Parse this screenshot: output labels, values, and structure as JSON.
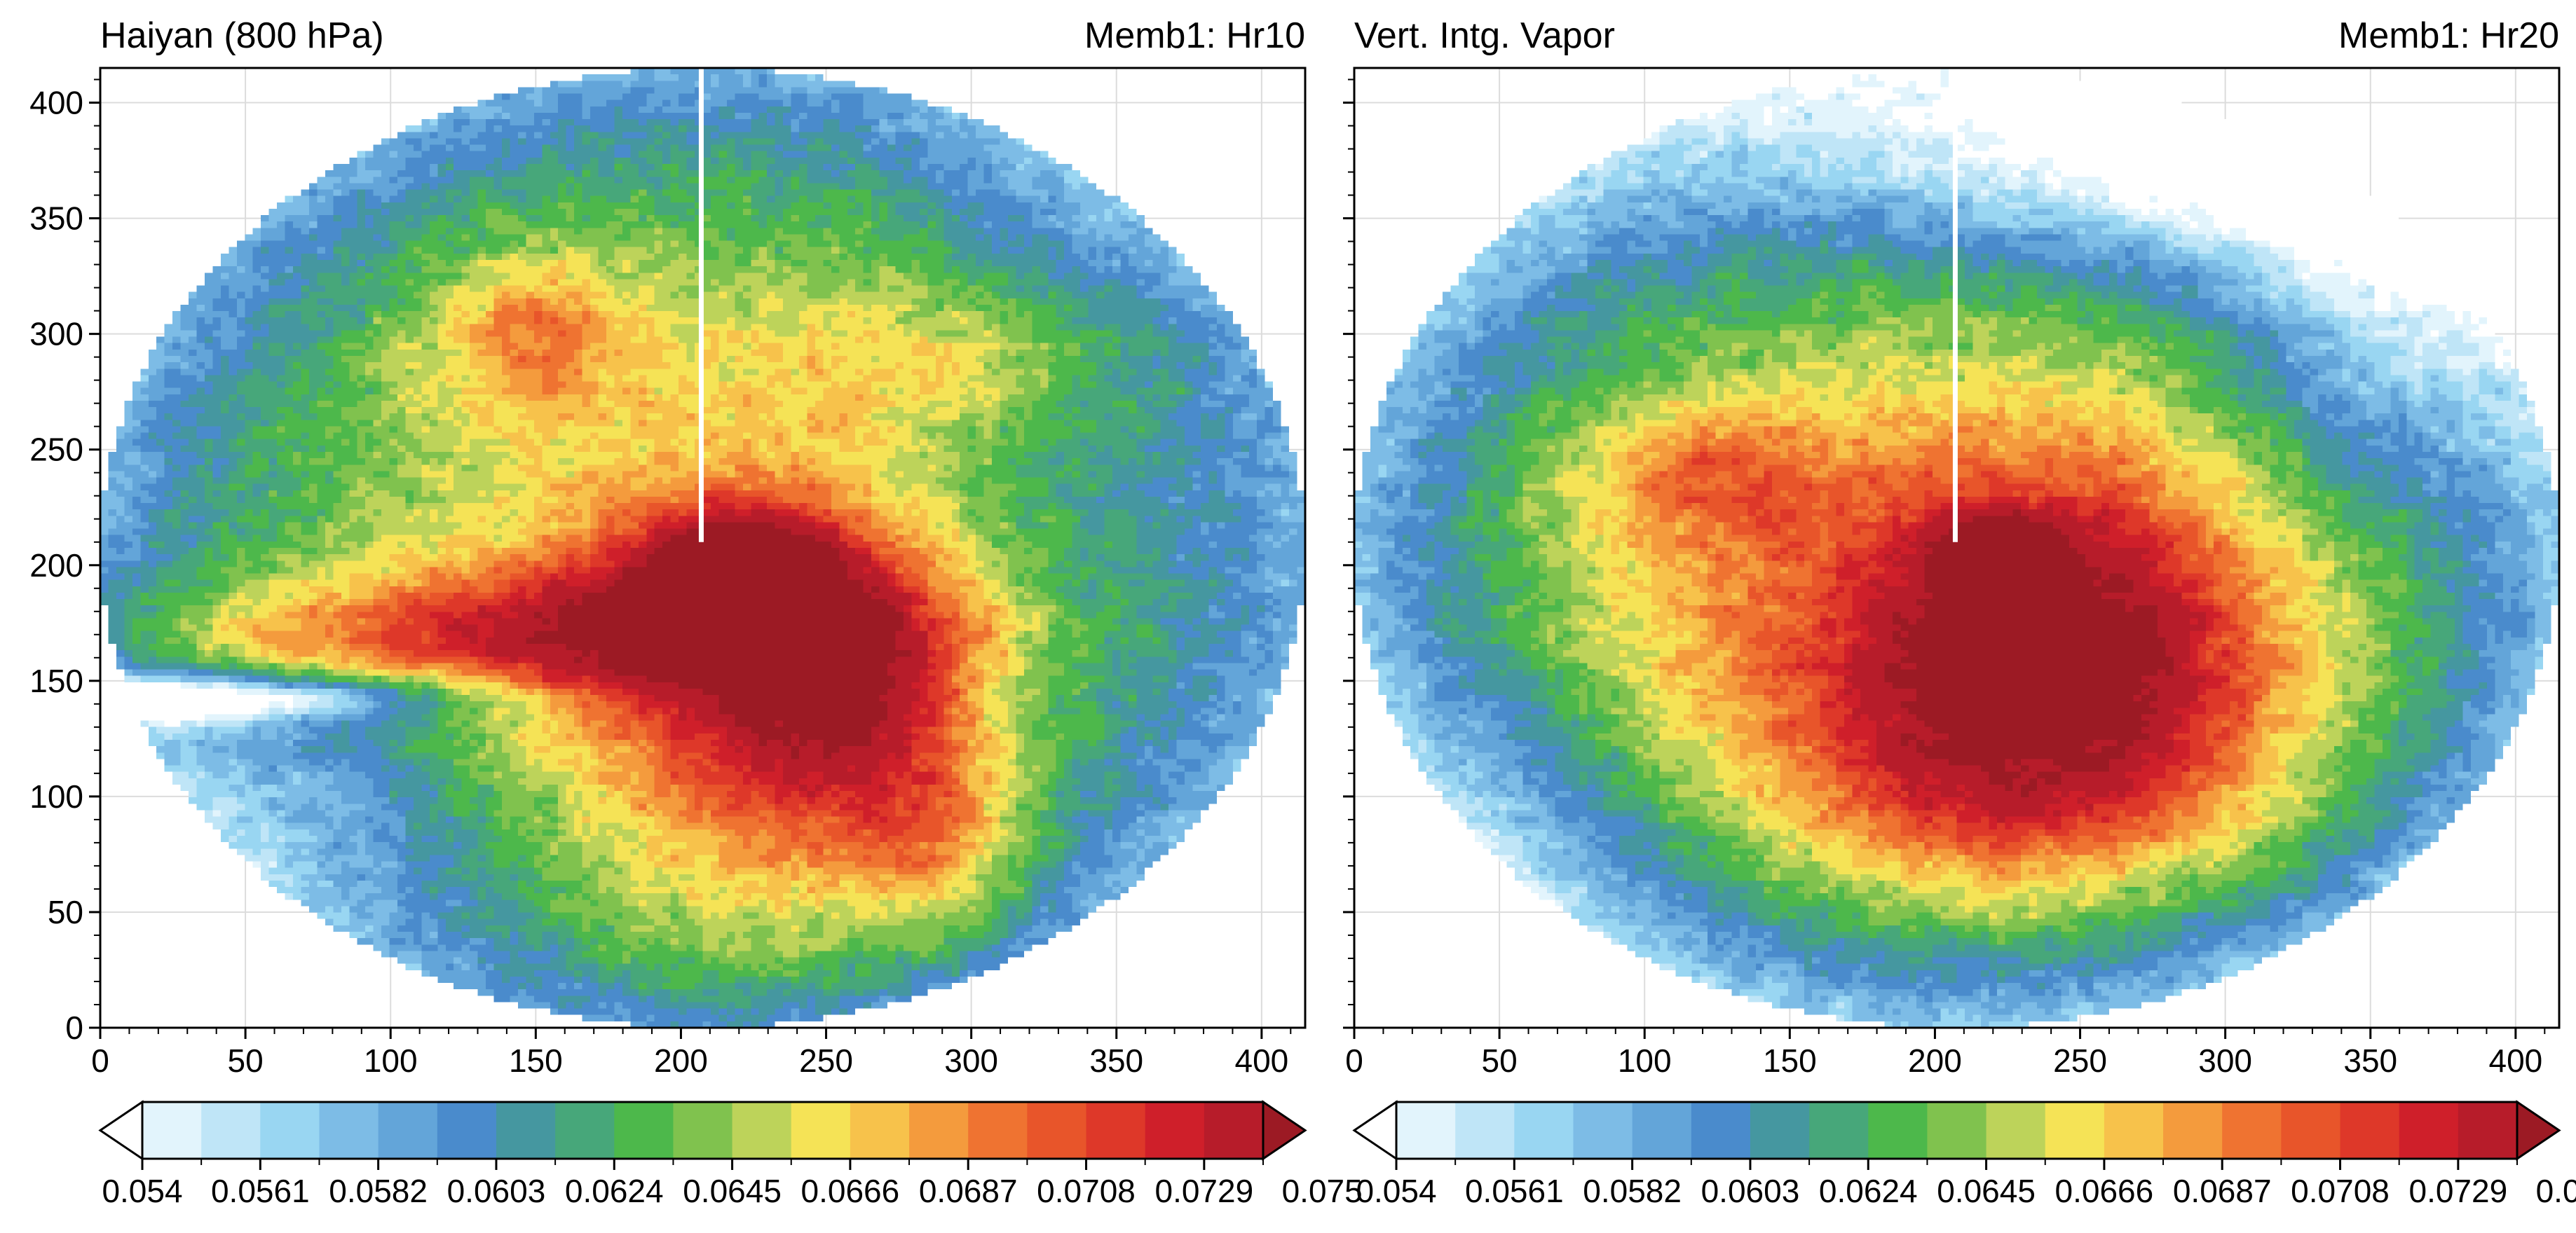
{
  "figure": {
    "panels": [
      {
        "left_title": "Haiyan (800 hPa)",
        "right_title": "Memb1: Hr10",
        "chart_data": {
          "type": "heatmap",
          "title": "Haiyan (800 hPa)",
          "subtitle": "Memb1: Hr10",
          "xlim": [
            0,
            415
          ],
          "ylim": [
            0,
            415
          ],
          "xticks": [
            0,
            50,
            100,
            150,
            200,
            250,
            300,
            350,
            400
          ],
          "yticks": [
            0,
            50,
            100,
            150,
            200,
            250,
            300,
            350,
            400
          ],
          "grid": true,
          "domain_center": [
            207.5,
            207.5
          ],
          "domain_radius": [
            207.5,
            207.5
          ],
          "center_line_x": 207,
          "center_line_y_range": [
            210,
            415
          ],
          "features": [
            {
              "kind": "max",
              "x": 222,
              "y": 195,
              "amp": 0.011,
              "sx": 20,
              "sy": 18
            },
            {
              "kind": "max",
              "x": 215,
              "y": 180,
              "amp": 0.007,
              "sx": 50,
              "sy": 40
            },
            {
              "kind": "max",
              "x": 130,
              "y": 170,
              "amp": 0.007,
              "sx": 100,
              "sy": 18
            },
            {
              "kind": "max",
              "x": 255,
              "y": 140,
              "amp": 0.006,
              "sx": 30,
              "sy": 40
            },
            {
              "kind": "max",
              "x": 150,
              "y": 300,
              "amp": 0.005,
              "sx": 25,
              "sy": 25
            },
            {
              "kind": "max",
              "x": 290,
              "y": 80,
              "amp": 0.004,
              "sx": 20,
              "sy": 30
            },
            {
              "kind": "max",
              "x": 230,
              "y": 90,
              "amp": 0.004,
              "sx": 60,
              "sy": 70
            },
            {
              "kind": "max",
              "x": 300,
              "y": 290,
              "amp": 0.003,
              "sx": 60,
              "sy": 25
            },
            {
              "kind": "min",
              "x": 20,
              "y": 142,
              "amp": 0.0095,
              "sx": 70,
              "sy": 7
            },
            {
              "kind": "min",
              "x": 80,
              "y": 100,
              "amp": 0.003,
              "sx": 60,
              "sy": 40
            },
            {
              "kind": "min",
              "x": 330,
              "y": 230,
              "amp": 0.0022,
              "sx": 40,
              "sy": 110
            }
          ],
          "background": 0.065,
          "edge_drop": 0.007
        }
      },
      {
        "left_title": "Vert. Intg. Vapor",
        "right_title": "Memb1: Hr20",
        "chart_data": {
          "type": "heatmap",
          "title": "Vert. Intg. Vapor",
          "subtitle": "Memb1: Hr20",
          "xlim": [
            0,
            415
          ],
          "ylim": [
            0,
            415
          ],
          "xticks": [
            0,
            50,
            100,
            150,
            200,
            250,
            300,
            350,
            400
          ],
          "yticks": [
            0,
            50,
            100,
            150,
            200,
            250,
            300,
            350,
            400
          ],
          "grid": true,
          "domain_center": [
            207.5,
            207.5
          ],
          "domain_radius": [
            207.5,
            207.5
          ],
          "center_line_x": 207,
          "center_line_y_range": [
            210,
            415
          ],
          "features": [
            {
              "kind": "max",
              "x": 220,
              "y": 205,
              "amp": 0.009,
              "sx": 14,
              "sy": 10
            },
            {
              "kind": "max",
              "x": 240,
              "y": 165,
              "amp": 0.008,
              "sx": 45,
              "sy": 50
            },
            {
              "kind": "max",
              "x": 200,
              "y": 170,
              "amp": 0.006,
              "sx": 110,
              "sy": 70
            },
            {
              "kind": "max",
              "x": 120,
              "y": 240,
              "amp": 0.004,
              "sx": 30,
              "sy": 20
            },
            {
              "kind": "max",
              "x": 230,
              "y": 100,
              "amp": 0.004,
              "sx": 70,
              "sy": 40
            },
            {
              "kind": "min",
              "x": 300,
              "y": 380,
              "amp": 0.008,
              "sx": 110,
              "sy": 35
            },
            {
              "kind": "min",
              "x": 350,
              "y": 300,
              "amp": 0.004,
              "sx": 40,
              "sy": 60
            },
            {
              "kind": "min",
              "x": 60,
              "y": 90,
              "amp": 0.0025,
              "sx": 60,
              "sy": 60
            }
          ],
          "background": 0.064,
          "edge_drop": 0.0075
        }
      }
    ],
    "colorbar": {
      "levels": [
        0.054,
        0.0561,
        0.0582,
        0.0603,
        0.0624,
        0.0645,
        0.0666,
        0.0687,
        0.0708,
        0.0729,
        0.075
      ],
      "labels": [
        "0.054",
        "0.0561",
        "0.0582",
        "0.0603",
        "0.0624",
        "0.0645",
        "0.0666",
        "0.0687",
        "0.0708",
        "0.0729",
        "0.075"
      ],
      "extend": "both",
      "colors": [
        "#ffffff",
        "#e2f4fc",
        "#bfe5f7",
        "#99d6f2",
        "#7dbce6",
        "#63a5d9",
        "#4a8bcc",
        "#4597a0",
        "#47a77a",
        "#4db84b",
        "#80c24e",
        "#bdd35a",
        "#f5e356",
        "#f7c24b",
        "#f49b3d",
        "#ef7331",
        "#e8552a",
        "#de3829",
        "#cf1f2a",
        "#b71c2a",
        "#9c1a24"
      ]
    }
  }
}
